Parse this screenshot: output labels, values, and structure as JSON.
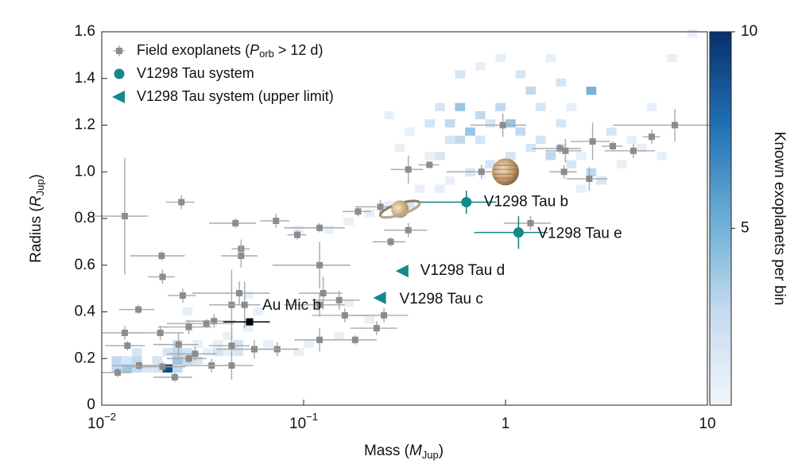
{
  "chart_data": {
    "type": "scatter",
    "x_label": {
      "text": "Mass (",
      "var": "M",
      "sub": "Jup",
      "close": ")"
    },
    "y_label": {
      "text": "Radius (",
      "var": "R",
      "sub": "Jup",
      "close": ")"
    },
    "xlim": [
      0.01,
      10
    ],
    "xscale": "log",
    "xticks": [
      {
        "value": 0.01,
        "label": "10",
        "exponent": "−2"
      },
      {
        "value": 0.1,
        "label": "10",
        "exponent": "−1"
      },
      1,
      10
    ],
    "ylim": [
      0,
      1.6
    ],
    "yticks": [
      0,
      0.2,
      0.4,
      0.6,
      0.8,
      {
        "value": 1,
        "label": "1.0"
      },
      1.2,
      1.4,
      1.6
    ],
    "legend": "upper left",
    "series": [
      {
        "name": {
          "text": "Field exoplanets (",
          "var": "P",
          "sub": "orb",
          "close": " > 12 d)"
        },
        "color": "#8c8c8c",
        "marker": "square",
        "x": [
          0.013,
          0.0248,
          0.0198,
          0.02,
          0.0252,
          0.0152,
          0.046,
          0.049,
          0.049,
          0.073,
          0.093,
          0.12,
          0.186,
          0.24,
          0.27,
          0.33,
          0.33,
          0.42,
          0.76,
          0.97,
          1.86,
          1.98,
          1.95,
          2.7,
          3.4,
          4.3,
          5.3,
          6.9,
          2.6,
          1.33,
          0.12,
          0.125,
          0.15,
          0.12,
          0.048,
          0.044,
          0.051,
          0.16,
          0.25,
          0.23,
          0.18,
          0.12,
          0.074,
          0.057,
          0.044,
          0.036,
          0.033,
          0.027,
          0.024,
          0.0195,
          0.013,
          0.0134,
          0.012,
          0.0153,
          0.023,
          0.029,
          0.035,
          0.044,
          0.02,
          0.027
        ],
        "y": [
          0.81,
          0.87,
          0.64,
          0.55,
          0.47,
          0.41,
          0.78,
          0.67,
          0.64,
          0.79,
          0.73,
          0.76,
          0.83,
          0.85,
          0.7,
          0.75,
          1.01,
          1.03,
          1.0,
          1.2,
          1.1,
          1.09,
          1.0,
          1.13,
          1.11,
          1.09,
          1.15,
          1.2,
          0.97,
          0.78,
          0.6,
          0.48,
          0.45,
          0.43,
          0.48,
          0.43,
          0.43,
          0.385,
          0.385,
          0.33,
          0.28,
          0.28,
          0.24,
          0.24,
          0.255,
          0.36,
          0.35,
          0.335,
          0.26,
          0.31,
          0.31,
          0.255,
          0.14,
          0.17,
          0.12,
          0.22,
          0.17,
          0.17,
          0.165,
          0.2
        ],
        "x_err": [
          0.004,
          0.004,
          0.006,
          0.003,
          0.004,
          0.003,
          0.012,
          0.005,
          0.01,
          0.012,
          0.01,
          0.04,
          0.03,
          0.06,
          0.05,
          0.08,
          0.06,
          0.05,
          0.25,
          0.3,
          0.5,
          0.4,
          0.3,
          0.6,
          0.4,
          1.2,
          0.5,
          3.5,
          0.6,
          0.35,
          0.05,
          0.03,
          0.04,
          0.04,
          0.02,
          0.01,
          0.01,
          0.05,
          0.08,
          0.06,
          0.05,
          0.03,
          0.02,
          0.02,
          0.01,
          0.01,
          0.012,
          0.008,
          0.006,
          0.006,
          0.003,
          0.003,
          0.002,
          0.004,
          0.005,
          0.008,
          0.01,
          0.012,
          0.006,
          0.006
        ],
        "y_err": [
          0.25,
          0.03,
          0.02,
          0.03,
          0.03,
          0.02,
          0.02,
          0.04,
          0.05,
          0.03,
          0.02,
          0.02,
          0.02,
          0.03,
          0.02,
          0.03,
          0.06,
          0.01,
          0.03,
          0.05,
          0.02,
          0.05,
          0.03,
          0.08,
          0.02,
          0.03,
          0.03,
          0.07,
          0.05,
          0.03,
          0.1,
          0.07,
          0.04,
          0.05,
          0.05,
          0.15,
          0.1,
          0.03,
          0.03,
          0.03,
          0.02,
          0.05,
          0.03,
          0.04,
          0.04,
          0.03,
          0.02,
          0.03,
          0.05,
          0.03,
          0.03,
          0.02,
          0.02,
          0.02,
          0.02,
          0.03,
          0.03,
          0.06,
          0.02,
          0.02
        ]
      },
      {
        "name": "V1298 Tau system",
        "color": "#13898a",
        "marker": "circle",
        "x": [
          0.64,
          1.16
        ],
        "y": [
          0.87,
          0.74
        ],
        "x_err": [
          0.26,
          0.46
        ],
        "y_err": [
          0.05,
          0.07
        ],
        "labels": [
          "V1298 Tau b",
          "V1298 Tau e"
        ]
      },
      {
        "name": "V1298 Tau system (upper limit)",
        "color": "#13898a",
        "marker": "triangle-left",
        "x": [
          0.31,
          0.24
        ],
        "y": [
          0.575,
          0.46
        ],
        "labels": [
          "V1298 Tau d",
          "V1298 Tau c"
        ]
      }
    ],
    "highlight": {
      "label": "Au Mic b",
      "color": "#000000",
      "x": 0.054,
      "y": 0.357,
      "x_err": 0.014,
      "y_err": 0.015
    },
    "solar_system": {
      "x": [
        0.3,
        1.0
      ],
      "y": [
        0.84,
        1.0
      ]
    },
    "heatmap": {
      "bin_dex": 0.05,
      "bin_radius": 0.035,
      "colormap": [
        "#f0f6fc",
        "#c6dbef",
        "#6baed6",
        "#2171b5",
        "#08306b"
      ],
      "clim": [
        0.5,
        10
      ],
      "colorbar_ticks": [
        5,
        10
      ],
      "colorbar_label": "Known exoplanets per bin",
      "cells": [
        [
          0.0112,
          0.14,
          3
        ],
        [
          0.0126,
          0.14,
          4
        ],
        [
          0.0141,
          0.14,
          3
        ],
        [
          0.0158,
          0.14,
          2
        ],
        [
          0.0178,
          0.14,
          2
        ],
        [
          0.02,
          0.14,
          9
        ],
        [
          0.0224,
          0.14,
          3
        ],
        [
          0.0112,
          0.175,
          3
        ],
        [
          0.0126,
          0.175,
          2
        ],
        [
          0.0141,
          0.175,
          3
        ],
        [
          0.0178,
          0.175,
          2
        ],
        [
          0.0224,
          0.175,
          4
        ],
        [
          0.0251,
          0.175,
          3
        ],
        [
          0.0282,
          0.175,
          2
        ],
        [
          0.0141,
          0.21,
          2
        ],
        [
          0.02,
          0.21,
          2
        ],
        [
          0.0224,
          0.21,
          3
        ],
        [
          0.0251,
          0.21,
          2
        ],
        [
          0.0316,
          0.21,
          1
        ],
        [
          0.0355,
          0.21,
          2
        ],
        [
          0.0398,
          0.21,
          1
        ],
        [
          0.0447,
          0.21,
          2
        ],
        [
          0.0224,
          0.245,
          2
        ],
        [
          0.0282,
          0.245,
          1
        ],
        [
          0.0355,
          0.245,
          1
        ],
        [
          0.0447,
          0.245,
          2
        ],
        [
          0.0631,
          0.245,
          1
        ],
        [
          0.0891,
          0.21,
          1
        ],
        [
          0.1,
          0.245,
          1
        ],
        [
          0.141,
          0.28,
          1
        ],
        [
          0.0501,
          0.315,
          1
        ],
        [
          0.0398,
          0.28,
          1
        ],
        [
          0.0562,
          0.385,
          1
        ],
        [
          0.0501,
          0.455,
          1
        ],
        [
          0.0251,
          0.385,
          1
        ],
        [
          0.2,
          0.35,
          1
        ],
        [
          0.158,
          0.42,
          1
        ],
        [
          0.398,
          1.05,
          1
        ],
        [
          0.447,
          1.05,
          2
        ],
        [
          0.501,
          1.12,
          2
        ],
        [
          0.562,
          1.12,
          3
        ],
        [
          0.631,
          1.155,
          4
        ],
        [
          0.708,
          1.12,
          2
        ],
        [
          0.794,
          1.19,
          2
        ],
        [
          0.891,
          1.26,
          3
        ],
        [
          1,
          1.19,
          4
        ],
        [
          1.12,
          1.155,
          3
        ],
        [
          1.26,
          1.085,
          2
        ],
        [
          1.41,
          1.12,
          2
        ],
        [
          1.58,
          1.05,
          3
        ],
        [
          1.78,
          1.085,
          2
        ],
        [
          2,
          1.015,
          2
        ],
        [
          2.24,
          1.05,
          1
        ],
        [
          2.51,
          0.98,
          3
        ],
        [
          2.82,
          0.945,
          2
        ],
        [
          2.51,
          1.33,
          5
        ],
        [
          1.78,
          1.365,
          2
        ],
        [
          1.41,
          1.26,
          2
        ],
        [
          0.562,
          1.26,
          4
        ],
        [
          0.501,
          1.19,
          3
        ],
        [
          0.447,
          1.26,
          2
        ],
        [
          0.398,
          1.19,
          2
        ],
        [
          0.316,
          1.155,
          1
        ],
        [
          0.282,
          1.085,
          1
        ],
        [
          0.251,
          1.225,
          1
        ],
        [
          0.562,
          1.4,
          2
        ],
        [
          0.708,
          1.435,
          1
        ],
        [
          0.891,
          1.47,
          1
        ],
        [
          1.12,
          1.4,
          2
        ],
        [
          1.26,
          1.33,
          3
        ],
        [
          1,
          1.05,
          2
        ],
        [
          0.891,
          0.98,
          2
        ],
        [
          0.794,
          1.015,
          2
        ],
        [
          0.631,
          0.98,
          2
        ],
        [
          0.501,
          0.945,
          1
        ],
        [
          0.447,
          0.91,
          1
        ],
        [
          0.355,
          0.91,
          1
        ],
        [
          0.316,
          0.84,
          2
        ],
        [
          0.251,
          0.84,
          1
        ],
        [
          0.2,
          0.805,
          1
        ],
        [
          0.158,
          0.77,
          1
        ],
        [
          0.126,
          0.735,
          1
        ],
        [
          0.0891,
          0.735,
          1
        ],
        [
          2.24,
          0.91,
          1
        ],
        [
          3.16,
          1.155,
          2
        ],
        [
          3.98,
          1.12,
          1
        ],
        [
          4.47,
          1.085,
          1
        ],
        [
          5.62,
          1.05,
          1
        ],
        [
          5.01,
          1.26,
          1
        ],
        [
          6.31,
          1.47,
          1
        ],
        [
          7.94,
          1.575,
          1
        ],
        [
          3.55,
          1.015,
          1
        ],
        [
          1.58,
          1.47,
          1
        ],
        [
          0.708,
          1.225,
          3
        ],
        [
          1.78,
          1.19,
          2
        ],
        [
          2,
          1.26,
          1
        ]
      ]
    }
  }
}
